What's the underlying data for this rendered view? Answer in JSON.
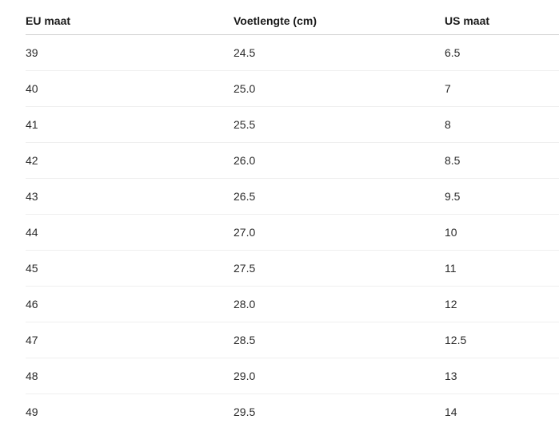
{
  "table": {
    "headers": [
      "EU maat",
      "Voetlengte (cm)",
      "US maat"
    ],
    "rows": [
      [
        "39",
        "24.5",
        "6.5"
      ],
      [
        "40",
        "25.0",
        "7"
      ],
      [
        "41",
        "25.5",
        "8"
      ],
      [
        "42",
        "26.0",
        "8.5"
      ],
      [
        "43",
        "26.5",
        "9.5"
      ],
      [
        "44",
        "27.0",
        "10"
      ],
      [
        "45",
        "27.5",
        "11"
      ],
      [
        "46",
        "28.0",
        "12"
      ],
      [
        "47",
        "28.5",
        "12.5"
      ],
      [
        "48",
        "29.0",
        "13"
      ],
      [
        "49",
        "29.5",
        "14"
      ]
    ]
  }
}
